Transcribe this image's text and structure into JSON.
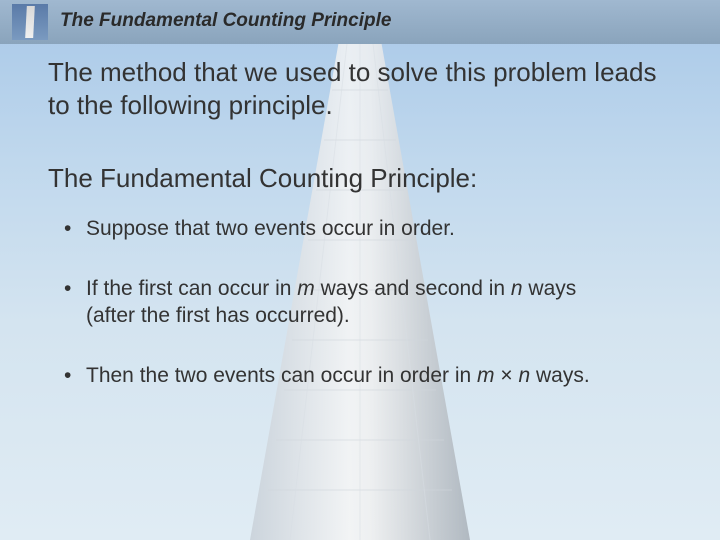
{
  "background": {
    "sky_gradient_top": "#a8c8e8",
    "sky_gradient_bottom": "#e0ecf4",
    "tower_color_light": "#f5f5f5",
    "tower_color_shadow": "#b8c0c8"
  },
  "header": {
    "band_gradient_top": "#a0b8d0",
    "band_gradient_bottom": "#8aa4bc",
    "thumb_gradient_top": "#5a7aa8",
    "thumb_gradient_bottom": "#7a9ac0",
    "title": "The Fundamental Counting Principle",
    "title_color": "#2a2a2a",
    "title_fontsize": 19,
    "title_italic": true,
    "title_bold": true
  },
  "content": {
    "intro": "The method that we used to solve this problem leads to the following principle.",
    "subtitle": "The Fundamental Counting Principle:",
    "bullets": [
      {
        "text": "Suppose that two events occur in order."
      },
      {
        "html": "If the first can occur in <span class=\"ital\">m</span> ways and second in <span class=\"ital\">n</span> ways<br>(after the first has occurred)."
      },
      {
        "html": "Then the two events can occur in order in <span class=\"ital\">m</span> × <span class=\"ital\">n</span> ways."
      }
    ],
    "body_fontsize": 26,
    "bullet_fontsize": 21,
    "text_color": "#333333"
  }
}
